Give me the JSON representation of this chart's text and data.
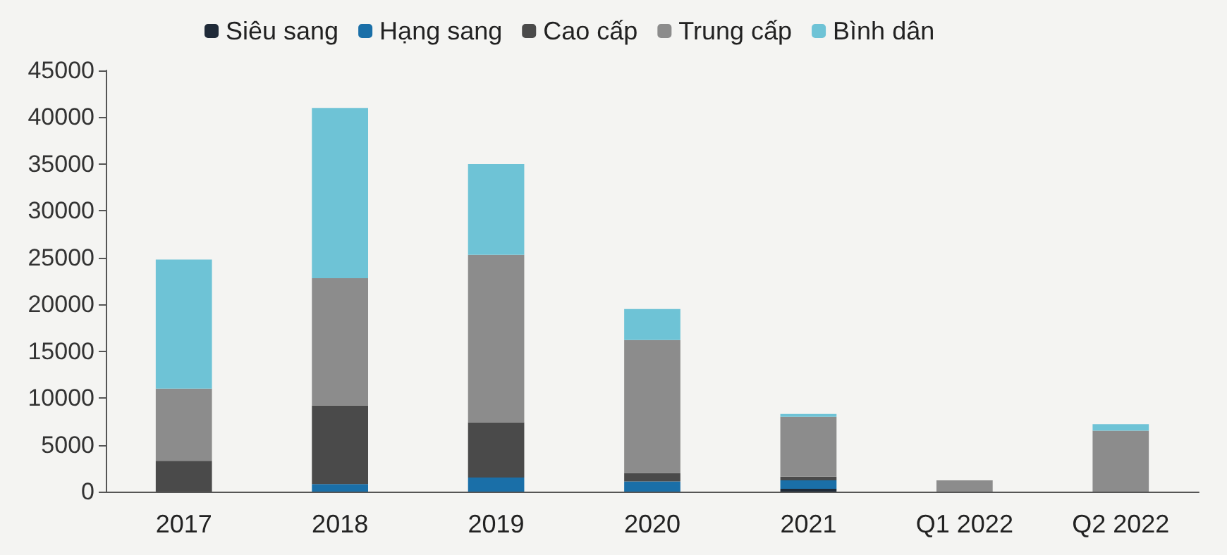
{
  "chart_data": {
    "type": "bar",
    "stacked": true,
    "categories": [
      "2017",
      "2018",
      "2019",
      "2020",
      "2021",
      "Q1 2022",
      "Q2 2022"
    ],
    "series": [
      {
        "name": "Siêu sang",
        "color": "#1f2a38",
        "values": [
          0,
          0,
          0,
          0,
          300,
          0,
          0
        ]
      },
      {
        "name": "Hạng sang",
        "color": "#1a6fa8",
        "values": [
          0,
          800,
          1500,
          1100,
          900,
          0,
          0
        ]
      },
      {
        "name": "Cao cấp",
        "color": "#4a4a4a",
        "values": [
          3300,
          8400,
          5900,
          900,
          400,
          0,
          0
        ]
      },
      {
        "name": "Trung cấp",
        "color": "#8c8c8c",
        "values": [
          7700,
          13600,
          17900,
          14200,
          6400,
          1200,
          6500
        ]
      },
      {
        "name": "Bình dân",
        "color": "#6ec3d6",
        "values": [
          13800,
          18200,
          9700,
          3300,
          300,
          0,
          700
        ]
      }
    ],
    "ylim": [
      0,
      45000
    ],
    "yticks": [
      0,
      5000,
      10000,
      15000,
      20000,
      25000,
      30000,
      35000,
      40000,
      45000
    ],
    "grid": false,
    "legend": "top"
  }
}
